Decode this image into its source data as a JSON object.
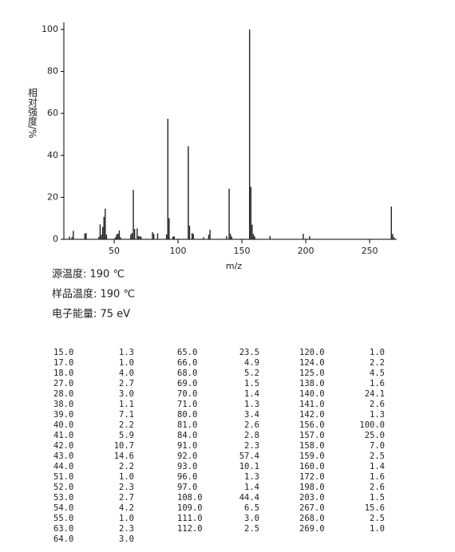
{
  "chart_data": {
    "type": "bar",
    "color": "#222222",
    "x_label": "m/z",
    "y_label": "相对强度/%",
    "x": [
      15,
      17,
      18,
      27,
      28,
      38,
      39,
      40,
      41,
      42,
      43,
      44,
      51,
      52,
      53,
      54,
      55,
      63,
      64,
      65,
      66,
      68,
      69,
      70,
      71,
      80,
      81,
      84,
      91,
      92,
      93,
      96,
      97,
      108,
      109,
      111,
      112,
      120,
      124,
      125,
      138,
      140,
      141,
      142,
      156,
      157,
      158,
      159,
      160,
      172,
      198,
      203,
      267,
      268,
      269
    ],
    "values": [
      1.3,
      1.0,
      4.0,
      2.7,
      3.0,
      1.1,
      7.1,
      2.2,
      5.9,
      10.7,
      14.6,
      2.2,
      1.0,
      2.3,
      2.7,
      4.2,
      1.0,
      2.3,
      3.0,
      23.5,
      4.9,
      5.2,
      1.5,
      1.4,
      1.3,
      3.4,
      2.6,
      2.8,
      2.3,
      57.4,
      10.1,
      1.3,
      1.4,
      44.4,
      6.5,
      3.0,
      2.5,
      1.0,
      2.2,
      4.5,
      1.6,
      24.1,
      2.6,
      1.3,
      100.0,
      25.0,
      7.0,
      2.5,
      1.4,
      1.6,
      2.6,
      1.5,
      15.6,
      2.5,
      1.0
    ],
    "xlim": [
      10.6,
      271.2
    ],
    "xticks": [
      50,
      100,
      150,
      200,
      250
    ],
    "ylim": [
      0,
      103.4
    ],
    "yticks": [
      0,
      20,
      40,
      60,
      80,
      100
    ]
  },
  "conditions": [
    "源温度: 190 ℃",
    "样品温度: 190 ℃",
    "电子能量: 75 eV"
  ],
  "table": {
    "columns": [
      [
        [
          "15.0",
          "1.3"
        ],
        [
          "17.0",
          "1.0"
        ],
        [
          "18.0",
          "4.0"
        ],
        [
          "27.0",
          "2.7"
        ],
        [
          "28.0",
          "3.0"
        ],
        [
          "38.0",
          "1.1"
        ],
        [
          "39.0",
          "7.1"
        ],
        [
          "40.0",
          "2.2"
        ],
        [
          "41.0",
          "5.9"
        ],
        [
          "42.0",
          "10.7"
        ],
        [
          "43.0",
          "14.6"
        ],
        [
          "44.0",
          "2.2"
        ],
        [
          "51.0",
          "1.0"
        ],
        [
          "52.0",
          "2.3"
        ],
        [
          "53.0",
          "2.7"
        ],
        [
          "54.0",
          "4.2"
        ],
        [
          "55.0",
          "1.0"
        ],
        [
          "63.0",
          "2.3"
        ],
        [
          "64.0",
          "3.0"
        ]
      ],
      [
        [
          "65.0",
          "23.5"
        ],
        [
          "66.0",
          "4.9"
        ],
        [
          "68.0",
          "5.2"
        ],
        [
          "69.0",
          "1.5"
        ],
        [
          "70.0",
          "1.4"
        ],
        [
          "71.0",
          "1.3"
        ],
        [
          "80.0",
          "3.4"
        ],
        [
          "81.0",
          "2.6"
        ],
        [
          "84.0",
          "2.8"
        ],
        [
          "91.0",
          "2.3"
        ],
        [
          "92.0",
          "57.4"
        ],
        [
          "93.0",
          "10.1"
        ],
        [
          "96.0",
          "1.3"
        ],
        [
          "97.0",
          "1.4"
        ],
        [
          "108.0",
          "44.4"
        ],
        [
          "109.0",
          "6.5"
        ],
        [
          "111.0",
          "3.0"
        ],
        [
          "112.0",
          "2.5"
        ]
      ],
      [
        [
          "120.0",
          "1.0"
        ],
        [
          "124.0",
          "2.2"
        ],
        [
          "125.0",
          "4.5"
        ],
        [
          "138.0",
          "1.6"
        ],
        [
          "140.0",
          "24.1"
        ],
        [
          "141.0",
          "2.6"
        ],
        [
          "142.0",
          "1.3"
        ],
        [
          "156.0",
          "100.0"
        ],
        [
          "157.0",
          "25.0"
        ],
        [
          "158.0",
          "7.0"
        ],
        [
          "159.0",
          "2.5"
        ],
        [
          "160.0",
          "1.4"
        ],
        [
          "172.0",
          "1.6"
        ],
        [
          "198.0",
          "2.6"
        ],
        [
          "203.0",
          "1.5"
        ],
        [
          "267.0",
          "15.6"
        ],
        [
          "268.0",
          "2.5"
        ],
        [
          "269.0",
          "1.0"
        ]
      ]
    ]
  }
}
